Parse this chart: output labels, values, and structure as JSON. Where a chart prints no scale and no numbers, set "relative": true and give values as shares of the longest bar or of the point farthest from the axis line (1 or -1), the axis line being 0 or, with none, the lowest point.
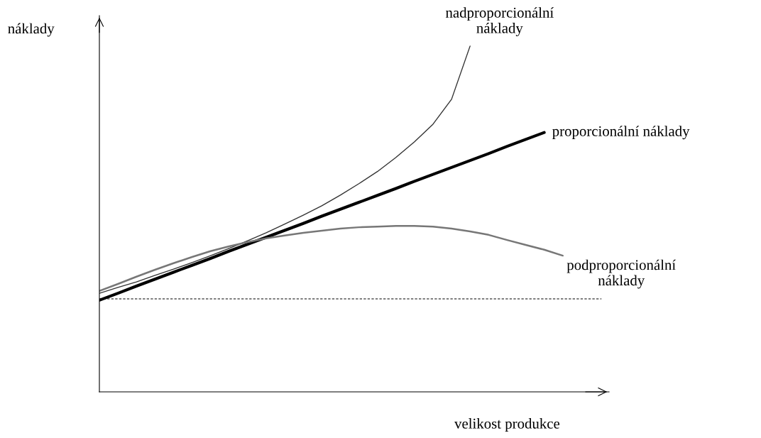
{
  "chart_data": {
    "type": "line",
    "relative": true,
    "xlabel": "velikost produkce",
    "ylabel": "náklady",
    "categories": [
      null,
      null,
      null,
      null,
      null,
      null,
      null,
      null,
      null,
      null,
      null,
      null,
      null,
      null,
      null,
      null,
      null,
      null,
      null,
      null,
      null,
      null,
      null,
      null,
      null,
      null
    ],
    "series": [
      {
        "name": "nadproporcionální\nnáklady",
        "color": "#333333",
        "values": [
          0.285,
          0.302,
          0.318,
          0.337,
          0.355,
          0.374,
          0.394,
          0.415,
          0.437,
          0.46,
          0.485,
          0.511,
          0.538,
          0.569,
          0.602,
          0.637,
          0.678,
          0.723,
          0.774,
          0.846,
          1.0,
          null,
          null,
          null,
          null,
          null
        ]
      },
      {
        "name": "proporcionální náklady",
        "color": "#000000",
        "values": [
          0.265,
          0.285,
          0.306,
          0.326,
          0.346,
          0.366,
          0.386,
          0.407,
          0.427,
          0.447,
          0.467,
          0.487,
          0.508,
          0.528,
          0.548,
          0.568,
          0.588,
          0.609,
          0.629,
          0.649,
          0.669,
          0.689,
          0.71,
          0.73,
          0.75,
          null
        ]
      },
      {
        "name": "podproporcionální\nnáklady",
        "color": "#777777",
        "values": [
          0.292,
          0.312,
          0.333,
          0.353,
          0.372,
          0.39,
          0.407,
          0.421,
          0.433,
          0.444,
          0.452,
          0.46,
          0.466,
          0.472,
          0.476,
          0.478,
          0.48,
          0.48,
          0.478,
          0.472,
          0.464,
          0.454,
          0.439,
          0.425,
          0.411,
          0.394
        ]
      }
    ],
    "ref_lines": [
      {
        "axis": "y",
        "value": 0.269,
        "label": null,
        "color": "#000000",
        "line_style": "dashed"
      }
    ]
  }
}
